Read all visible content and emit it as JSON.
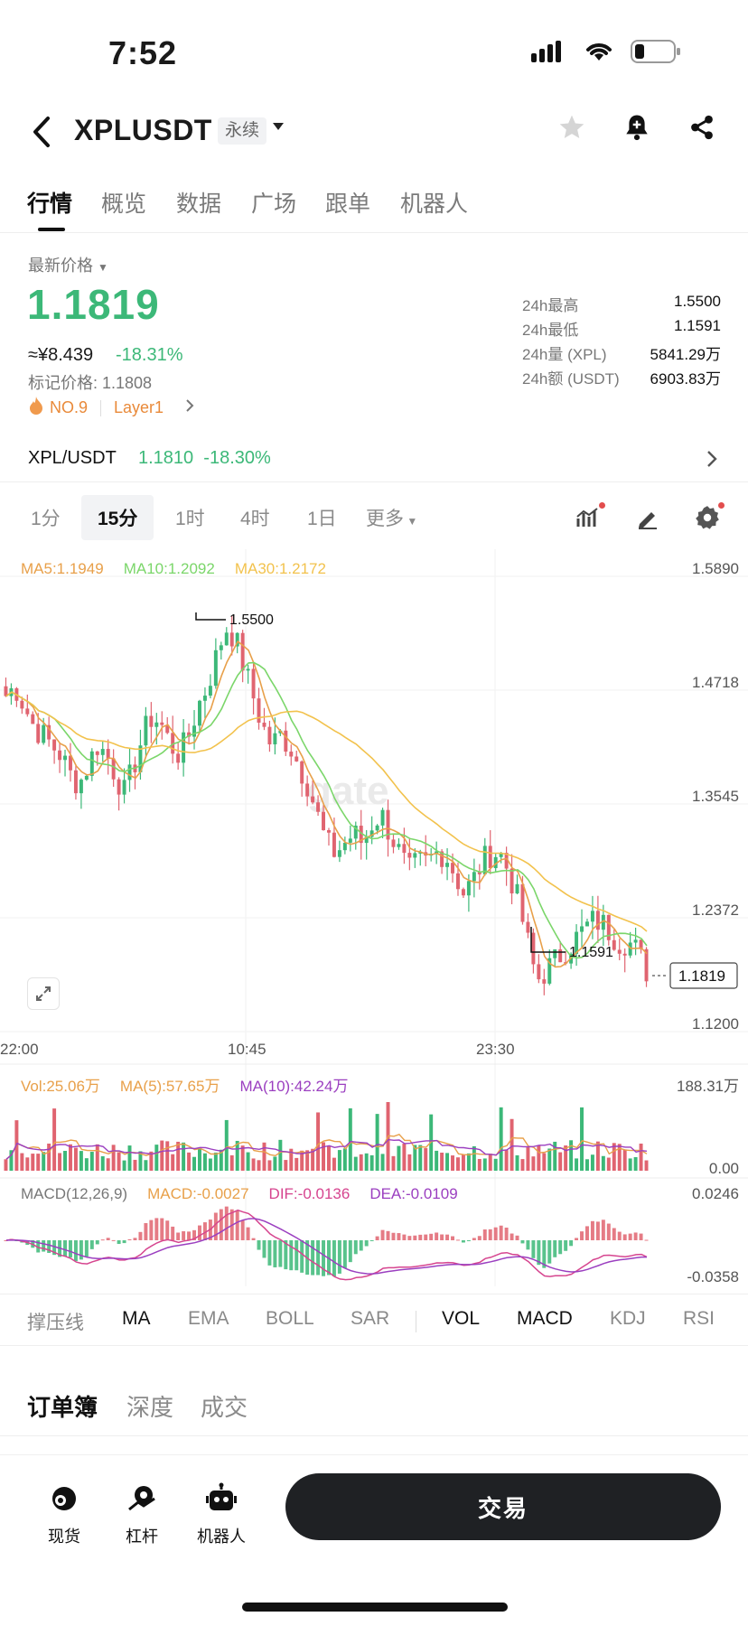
{
  "status": {
    "time": "7:52"
  },
  "header": {
    "symbol": "XPLUSDT",
    "contract_type": "永续"
  },
  "tabs": [
    "行情",
    "概览",
    "数据",
    "广场",
    "跟单",
    "机器人"
  ],
  "price": {
    "label": "最新价格",
    "last": "1.1819",
    "approx_cny": "≈¥8.439",
    "change_pct": "-18.31%",
    "mark_price": "标记价格: 1.1808",
    "rank": "NO.9",
    "tag": "Layer1"
  },
  "stats": [
    {
      "k": "24h最高",
      "v": "1.5500"
    },
    {
      "k": "24h最低",
      "v": "1.1591"
    },
    {
      "k": "24h量 (XPL)",
      "v": "5841.29万"
    },
    {
      "k": "24h额 (USDT)",
      "v": "6903.83万"
    }
  ],
  "spot_pair": {
    "name": "XPL/USDT",
    "price": "1.1810",
    "change": "-18.30%"
  },
  "intervals": [
    "1分",
    "15分",
    "1时",
    "4时",
    "1日",
    "更多"
  ],
  "chart_legend": {
    "ma5": "MA5:1.1949",
    "ma10": "MA10:1.2092",
    "ma30": "MA30:1.2172",
    "vol": "Vol:25.06万",
    "vol_ma5": "MA(5):57.65万",
    "vol_ma10": "MA(10):42.24万",
    "macd_title": "MACD(12,26,9)",
    "macd": "MACD:-0.0027",
    "dif": "DIF:-0.0136",
    "dea": "DEA:-0.0109"
  },
  "price_axis": [
    "1.5890",
    "1.4718",
    "1.3545",
    "1.2372",
    "1.1200"
  ],
  "vol_axis": [
    "188.31万",
    "0.00"
  ],
  "macd_axis": [
    "0.0246",
    "-0.0358"
  ],
  "time_axis": [
    "22:00",
    "10:45",
    "23:30"
  ],
  "annotations": {
    "high": "1.5500",
    "low": "1.1591",
    "current": "1.1819"
  },
  "watermark": "gate",
  "colors": {
    "up": "#3cb878",
    "down": "#e06470",
    "ma5": "#e8a04a",
    "ma10": "#7bd66a",
    "ma30": "#f2c24d",
    "macd_dif": "#d6458f",
    "macd_dea": "#9b3fc0"
  },
  "chart_data": {
    "type": "candlestick",
    "ylim": [
      1.12,
      1.589
    ],
    "close_trend": [
      1.46,
      1.47,
      1.45,
      1.43,
      1.42,
      1.41,
      1.4,
      1.38,
      1.37,
      1.39,
      1.41,
      1.4,
      1.38,
      1.36,
      1.39,
      1.42,
      1.44,
      1.43,
      1.41,
      1.4,
      1.42,
      1.45,
      1.47,
      1.5,
      1.53,
      1.52,
      1.49,
      1.46,
      1.43,
      1.41,
      1.42,
      1.41,
      1.39,
      1.37,
      1.34,
      1.31,
      1.3,
      1.31,
      1.32,
      1.31,
      1.33,
      1.34,
      1.32,
      1.3,
      1.28,
      1.29,
      1.29,
      1.3,
      1.3,
      1.28,
      1.26,
      1.27,
      1.29,
      1.3,
      1.3,
      1.28,
      1.25,
      1.21,
      1.17,
      1.18,
      1.19,
      1.2,
      1.21,
      1.22,
      1.23,
      1.23,
      1.22,
      1.21,
      1.21,
      1.2,
      1.18
    ]
  },
  "indicators": [
    "撑压线",
    "MA",
    "EMA",
    "BOLL",
    "SAR",
    "VOL",
    "MACD",
    "KDJ",
    "RSI"
  ],
  "book_tabs": [
    "订单簿",
    "深度",
    "成交"
  ],
  "bottom_nav": [
    "现货",
    "杠杆",
    "机器人"
  ],
  "trade_label": "交易"
}
